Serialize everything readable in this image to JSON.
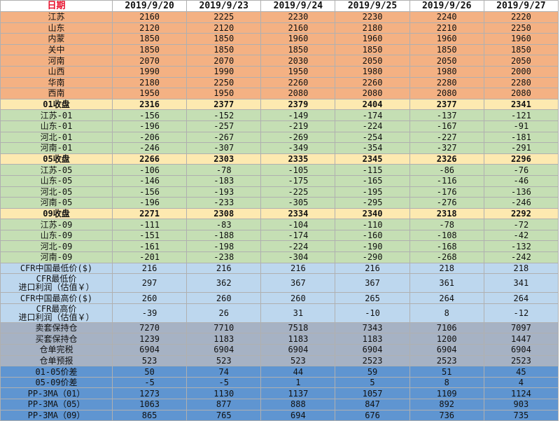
{
  "header": {
    "corner_label": "日期",
    "dates": [
      "2019/9/20",
      "2019/9/23",
      "2019/9/24",
      "2019/9/25",
      "2019/9/26",
      "2019/9/27"
    ]
  },
  "colors": {
    "orange": "#f4b183",
    "yellow": "#fde9b0",
    "green": "#c5dfb4",
    "light_blue": "#bdd7ee",
    "gray": "#a6b2c4",
    "blue": "#5f95d1",
    "header_red": "#e8112d"
  },
  "rows": [
    {
      "label": "江苏",
      "color": "orange",
      "values": [
        "2160",
        "2225",
        "2230",
        "2230",
        "2240",
        "2220"
      ]
    },
    {
      "label": "山东",
      "color": "orange",
      "values": [
        "2120",
        "2120",
        "2160",
        "2180",
        "2210",
        "2250"
      ]
    },
    {
      "label": "内蒙",
      "color": "orange",
      "values": [
        "1850",
        "1850",
        "1960",
        "1960",
        "1960",
        "1960"
      ]
    },
    {
      "label": "关中",
      "color": "orange",
      "values": [
        "1850",
        "1850",
        "1850",
        "1850",
        "1850",
        "1850"
      ]
    },
    {
      "label": "河南",
      "color": "orange",
      "values": [
        "2070",
        "2070",
        "2030",
        "2050",
        "2050",
        "2050"
      ]
    },
    {
      "label": "山西",
      "color": "orange",
      "values": [
        "1990",
        "1990",
        "1950",
        "1980",
        "1980",
        "2000"
      ]
    },
    {
      "label": "华南",
      "color": "orange",
      "values": [
        "2180",
        "2250",
        "2260",
        "2260",
        "2280",
        "2280"
      ]
    },
    {
      "label": "西南",
      "color": "orange",
      "values": [
        "1950",
        "1950",
        "2080",
        "2080",
        "2080",
        "2080"
      ]
    },
    {
      "label": "01收盘",
      "color": "yellow",
      "bold": true,
      "values": [
        "2316",
        "2377",
        "2379",
        "2404",
        "2377",
        "2341"
      ]
    },
    {
      "label": "江苏-01",
      "color": "green",
      "values": [
        "-156",
        "-152",
        "-149",
        "-174",
        "-137",
        "-121"
      ]
    },
    {
      "label": "山东-01",
      "color": "green",
      "values": [
        "-196",
        "-257",
        "-219",
        "-224",
        "-167",
        "-91"
      ]
    },
    {
      "label": "河北-01",
      "color": "green",
      "values": [
        "-206",
        "-267",
        "-269",
        "-254",
        "-227",
        "-181"
      ]
    },
    {
      "label": "河南-01",
      "color": "green",
      "values": [
        "-246",
        "-307",
        "-349",
        "-354",
        "-327",
        "-291"
      ]
    },
    {
      "label": "05收盘",
      "color": "yellow",
      "bold": true,
      "values": [
        "2266",
        "2303",
        "2335",
        "2345",
        "2326",
        "2296"
      ]
    },
    {
      "label": "江苏-05",
      "color": "green",
      "values": [
        "-106",
        "-78",
        "-105",
        "-115",
        "-86",
        "-76"
      ]
    },
    {
      "label": "山东-05",
      "color": "green",
      "values": [
        "-146",
        "-183",
        "-175",
        "-165",
        "-116",
        "-46"
      ]
    },
    {
      "label": "河北-05",
      "color": "green",
      "values": [
        "-156",
        "-193",
        "-225",
        "-195",
        "-176",
        "-136"
      ]
    },
    {
      "label": "河南-05",
      "color": "green",
      "values": [
        "-196",
        "-233",
        "-305",
        "-295",
        "-276",
        "-246"
      ]
    },
    {
      "label": "09收盘",
      "color": "yellow",
      "bold": true,
      "values": [
        "2271",
        "2308",
        "2334",
        "2340",
        "2318",
        "2292"
      ]
    },
    {
      "label": "江苏-09",
      "color": "green",
      "values": [
        "-111",
        "-83",
        "-104",
        "-110",
        "-78",
        "-72"
      ]
    },
    {
      "label": "山东-09",
      "color": "green",
      "values": [
        "-151",
        "-188",
        "-174",
        "-160",
        "-108",
        "-42"
      ]
    },
    {
      "label": "河北-09",
      "color": "green",
      "values": [
        "-161",
        "-198",
        "-224",
        "-190",
        "-168",
        "-132"
      ]
    },
    {
      "label": "河南-09",
      "color": "green",
      "values": [
        "-201",
        "-238",
        "-304",
        "-290",
        "-268",
        "-242"
      ]
    },
    {
      "label": "CFR中国最低价($)",
      "color": "light_blue",
      "values": [
        "216",
        "216",
        "216",
        "216",
        "218",
        "218"
      ]
    },
    {
      "label": "CFR最低价",
      "label2": "进口利润（估值￥）",
      "color": "light_blue",
      "tall": true,
      "values": [
        "297",
        "362",
        "367",
        "367",
        "361",
        "341"
      ]
    },
    {
      "label": "CFR中国最高价($)",
      "color": "light_blue",
      "values": [
        "260",
        "260",
        "260",
        "265",
        "264",
        "264"
      ]
    },
    {
      "label": "CFR最高价",
      "label2": "进口利润（估值￥）",
      "color": "light_blue",
      "tall": true,
      "values": [
        "-39",
        "26",
        "31",
        "-10",
        "8",
        "-12"
      ]
    },
    {
      "label": "卖套保持仓",
      "color": "gray",
      "values": [
        "7270",
        "7710",
        "7518",
        "7343",
        "7106",
        "7097"
      ]
    },
    {
      "label": "买套保持仓",
      "color": "gray",
      "values": [
        "1239",
        "1183",
        "1183",
        "1183",
        "1200",
        "1447"
      ]
    },
    {
      "label": "仓单完税",
      "color": "gray",
      "values": [
        "6904",
        "6904",
        "6904",
        "6904",
        "6904",
        "6904"
      ]
    },
    {
      "label": "仓单预报",
      "color": "gray",
      "values": [
        "523",
        "523",
        "523",
        "2523",
        "2523",
        "2523"
      ]
    },
    {
      "label": "01-05价差",
      "color": "blue",
      "values": [
        "50",
        "74",
        "44",
        "59",
        "51",
        "45"
      ]
    },
    {
      "label": "05-09价差",
      "color": "blue",
      "values": [
        "-5",
        "-5",
        "1",
        "5",
        "8",
        "4"
      ]
    },
    {
      "label": "PP-3MA（01）",
      "color": "blue",
      "values": [
        "1273",
        "1130",
        "1137",
        "1057",
        "1109",
        "1124"
      ]
    },
    {
      "label": "PP-3MA（05）",
      "color": "blue",
      "values": [
        "1063",
        "877",
        "888",
        "847",
        "892",
        "903"
      ]
    },
    {
      "label": "PP-3MA（09）",
      "color": "blue",
      "values": [
        "865",
        "765",
        "694",
        "676",
        "736",
        "735"
      ]
    }
  ]
}
